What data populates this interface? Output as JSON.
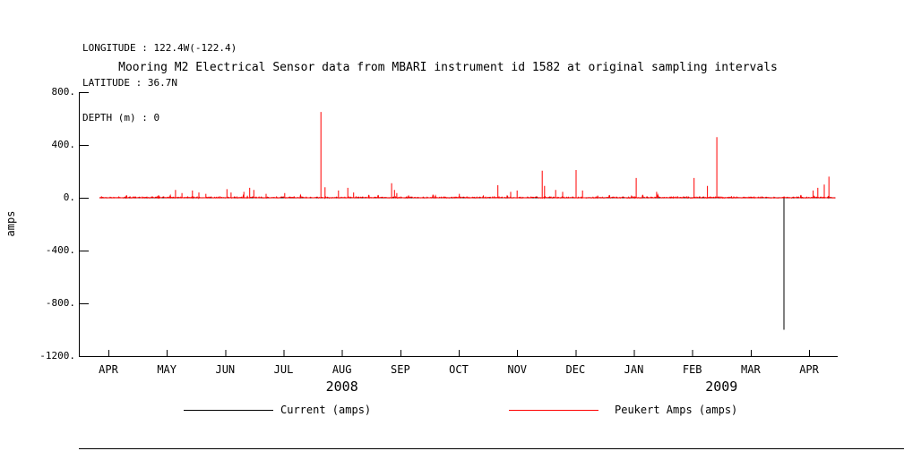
{
  "header": {
    "longitude": "LONGITUDE : 122.4W(-122.4)",
    "latitude": "LATITUDE : 36.7N",
    "depth": "DEPTH (m) : 0"
  },
  "legend": {
    "items": [
      {
        "label": "Current (amps)",
        "color": "#000000"
      },
      {
        "label": "Peukert Amps (amps)",
        "color": "#ff0000"
      }
    ]
  },
  "chart_data": {
    "type": "line",
    "title": "Mooring M2 Electrical Sensor data from MBARI instrument id 1582 at original sampling intervals",
    "ylabel": "amps",
    "xlabel": "",
    "ylim": [
      -1200,
      800
    ],
    "yticks": [
      800,
      400,
      0,
      -400,
      -800,
      -1200
    ],
    "ytick_labels": [
      "800.",
      "400.",
      "0.",
      "-400.",
      "-800.",
      "-1200."
    ],
    "x_months": [
      "APR",
      "MAY",
      "JUN",
      "JUL",
      "AUG",
      "SEP",
      "OCT",
      "NOV",
      "DEC",
      "JAN",
      "FEB",
      "MAR",
      "APR"
    ],
    "year_labels": [
      {
        "label": "2008",
        "center_month": 4.0
      },
      {
        "label": "2009",
        "center_month": 10.5
      }
    ],
    "x_axis_note": "x in months measured from the APR 2008 tick; spikes are [month_offset, amps]",
    "grid": false,
    "legend_position": "bottom",
    "series": [
      {
        "name": "Current (amps)",
        "color": "#000000",
        "baseline": {
          "x_start": -0.15,
          "x_end": 12.45,
          "level": 0,
          "noise_amplitude": 0
        },
        "spikes": [
          [
            11.57,
            -1000
          ]
        ]
      },
      {
        "name": "Peukert Amps (amps)",
        "color": "#ff0000",
        "baseline": {
          "x_start": -0.15,
          "x_end": 12.45,
          "level": 0,
          "noise_amplitude": 8
        },
        "spikes": [
          [
            1.15,
            60
          ],
          [
            1.26,
            35
          ],
          [
            1.44,
            55
          ],
          [
            1.55,
            40
          ],
          [
            1.67,
            30
          ],
          [
            2.03,
            65
          ],
          [
            2.1,
            40
          ],
          [
            2.32,
            45
          ],
          [
            2.42,
            75
          ],
          [
            2.49,
            60
          ],
          [
            2.7,
            30
          ],
          [
            3.02,
            35
          ],
          [
            3.64,
            650
          ],
          [
            3.71,
            80
          ],
          [
            3.94,
            55
          ],
          [
            4.1,
            75
          ],
          [
            4.2,
            40
          ],
          [
            4.85,
            110
          ],
          [
            4.9,
            60
          ],
          [
            4.94,
            35
          ],
          [
            6.01,
            30
          ],
          [
            6.67,
            95
          ],
          [
            6.89,
            45
          ],
          [
            7.0,
            55
          ],
          [
            7.43,
            205
          ],
          [
            7.47,
            90
          ],
          [
            7.66,
            60
          ],
          [
            7.78,
            45
          ],
          [
            8.01,
            210
          ],
          [
            8.12,
            55
          ],
          [
            9.04,
            150
          ],
          [
            9.39,
            45
          ],
          [
            10.03,
            150
          ],
          [
            10.26,
            90
          ],
          [
            10.42,
            460
          ],
          [
            12.07,
            55
          ],
          [
            12.15,
            75
          ],
          [
            12.26,
            100
          ],
          [
            12.34,
            160
          ]
        ]
      }
    ]
  }
}
